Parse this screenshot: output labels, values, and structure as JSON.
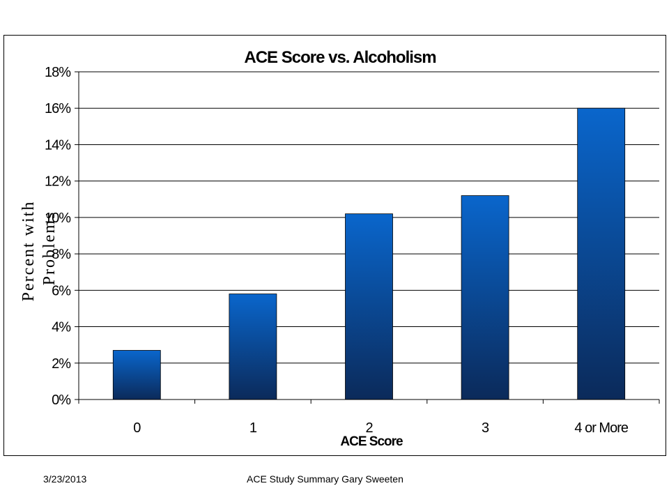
{
  "chart_data": {
    "type": "bar",
    "title": "ACE Score vs. Alcoholism",
    "xlabel": "ACE Score",
    "ylabel": "Percent with Problems",
    "ylabel_lines": [
      "Percent with",
      "Problems"
    ],
    "categories": [
      "0",
      "1",
      "2",
      "3",
      "4 or More"
    ],
    "values": [
      2.7,
      5.8,
      10.2,
      11.2,
      16.0
    ],
    "ylim": [
      0,
      18
    ],
    "yticks": [
      "0%",
      "2%",
      "4%",
      "6%",
      "8%",
      "10%",
      "12%",
      "14%",
      "16%",
      "18%"
    ],
    "grid": true,
    "legend": "none",
    "bar_color_top": "#0a66cc",
    "bar_color_bottom": "#0b2a5a"
  },
  "footer": {
    "date": "3/23/2013",
    "title": "ACE Study Summary Gary Sweeten"
  }
}
